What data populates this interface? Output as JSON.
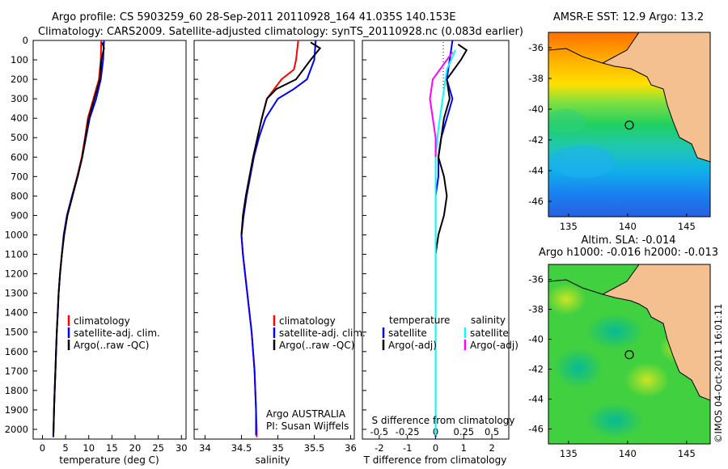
{
  "header": {
    "title_line1": "Argo profile: CS 5903259_60 28-Sep-2011 20110928_164 41.035S 140.153E",
    "title_line2": "Climatology: CARS2009. Satellite-adjusted climatology: synTS_20110928.nc (0.083d earlier)"
  },
  "watermark": "©IMOS 04-Oct-2011 16:01:11",
  "colors": {
    "climatology": "#ff0000",
    "satellite": "#0000ff",
    "argo": "#000000",
    "argo_salinity_diff": "#ff00ff",
    "satellite_salinity_diff": "#00ffff",
    "land": "#f5c090"
  },
  "chart_data": [
    {
      "type": "line",
      "name": "temperature-panel",
      "xlabel": "temperature (deg C)",
      "ylabel": "",
      "xlim": [
        -2,
        31
      ],
      "ylim": [
        2050,
        0
      ],
      "xticks": [
        0,
        5,
        10,
        15,
        20,
        25,
        30
      ],
      "yticks": [
        0,
        100,
        200,
        300,
        400,
        500,
        600,
        700,
        800,
        900,
        1000,
        1100,
        1200,
        1300,
        1400,
        1500,
        1600,
        1700,
        1800,
        1900,
        2000
      ],
      "legend": [
        "climatology",
        "satellite-adj. clim.",
        "Argo(..raw -QC)"
      ],
      "legend_position": "lower-center",
      "series": [
        {
          "name": "climatology",
          "color": "#ff0000",
          "points": [
            [
              12.7,
              0
            ],
            [
              12.6,
              100
            ],
            [
              12.2,
              200
            ],
            [
              11.0,
              300
            ],
            [
              9.8,
              400
            ],
            [
              9.2,
              500
            ],
            [
              8.5,
              600
            ],
            [
              7.5,
              700
            ],
            [
              6.4,
              800
            ],
            [
              5.3,
              900
            ],
            [
              4.6,
              1000
            ],
            [
              4.2,
              1100
            ],
            [
              3.8,
              1200
            ],
            [
              3.5,
              1300
            ],
            [
              3.3,
              1400
            ],
            [
              3.1,
              1500
            ],
            [
              2.95,
              1600
            ],
            [
              2.8,
              1700
            ],
            [
              2.65,
              1800
            ],
            [
              2.5,
              1900
            ],
            [
              2.4,
              2000
            ],
            [
              2.35,
              2040
            ]
          ]
        },
        {
          "name": "satellite-adj. clim.",
          "color": "#0000ff",
          "points": [
            [
              13.3,
              0
            ],
            [
              13.1,
              100
            ],
            [
              12.6,
              200
            ],
            [
              11.6,
              300
            ],
            [
              10.2,
              400
            ],
            [
              9.4,
              500
            ],
            [
              8.6,
              600
            ],
            [
              7.6,
              700
            ],
            [
              6.4,
              800
            ],
            [
              5.3,
              900
            ],
            [
              4.6,
              1000
            ],
            [
              4.2,
              1100
            ],
            [
              3.8,
              1200
            ],
            [
              3.5,
              1300
            ],
            [
              3.3,
              1400
            ],
            [
              3.1,
              1500
            ],
            [
              2.95,
              1600
            ],
            [
              2.8,
              1700
            ],
            [
              2.65,
              1800
            ],
            [
              2.5,
              1900
            ],
            [
              2.4,
              2000
            ],
            [
              2.35,
              2040
            ]
          ]
        },
        {
          "name": "Argo(..raw -QC)",
          "color": "#000000",
          "points": [
            [
              12.9,
              10
            ],
            [
              13.3,
              40
            ],
            [
              12.7,
              100
            ],
            [
              12.4,
              200
            ],
            [
              11.2,
              300
            ],
            [
              10.0,
              400
            ],
            [
              9.3,
              500
            ],
            [
              8.6,
              600
            ],
            [
              7.6,
              700
            ],
            [
              6.5,
              800
            ],
            [
              5.4,
              900
            ],
            [
              4.7,
              1000
            ],
            [
              4.2,
              1100
            ],
            [
              3.8,
              1200
            ],
            [
              3.5,
              1300
            ],
            [
              3.3,
              1400
            ],
            [
              3.1,
              1500
            ],
            [
              2.95,
              1600
            ],
            [
              2.8,
              1700
            ],
            [
              2.65,
              1800
            ],
            [
              2.5,
              1900
            ],
            [
              2.4,
              2000
            ],
            [
              2.35,
              2030
            ]
          ]
        }
      ]
    },
    {
      "type": "line",
      "name": "salinity-panel",
      "xlabel": "salinity",
      "ylabel": "",
      "xlim": [
        33.85,
        36.05
      ],
      "ylim": [
        2050,
        0
      ],
      "xticks": [
        34,
        34.5,
        35,
        35.5,
        36
      ],
      "legend": [
        "climatology",
        "satellite-adj. clim.",
        "Argo(..raw -QC)"
      ],
      "legend_position": "lower-right",
      "annotations": [
        "Argo AUSTRALIA",
        "PI: Susan Wijffels"
      ],
      "series": [
        {
          "name": "climatology",
          "color": "#ff0000",
          "points": [
            [
              35.28,
              0
            ],
            [
              35.25,
              100
            ],
            [
              35.22,
              150
            ],
            [
              35.05,
              200
            ],
            [
              34.95,
              250
            ],
            [
              34.85,
              300
            ],
            [
              34.78,
              400
            ],
            [
              34.72,
              500
            ],
            [
              34.67,
              600
            ],
            [
              34.62,
              700
            ],
            [
              34.57,
              800
            ],
            [
              34.53,
              900
            ],
            [
              34.5,
              1000
            ],
            [
              34.52,
              1100
            ],
            [
              34.55,
              1200
            ],
            [
              34.58,
              1300
            ],
            [
              34.61,
              1400
            ],
            [
              34.64,
              1500
            ],
            [
              34.66,
              1600
            ],
            [
              34.68,
              1700
            ],
            [
              34.69,
              1800
            ],
            [
              34.7,
              1900
            ],
            [
              34.71,
              2000
            ],
            [
              34.71,
              2040
            ]
          ]
        },
        {
          "name": "satellite-adj. clim.",
          "color": "#0000ff",
          "points": [
            [
              35.52,
              0
            ],
            [
              35.5,
              100
            ],
            [
              35.4,
              200
            ],
            [
              35.22,
              250
            ],
            [
              35.0,
              300
            ],
            [
              34.83,
              400
            ],
            [
              34.74,
              500
            ],
            [
              34.67,
              600
            ],
            [
              34.62,
              700
            ],
            [
              34.57,
              800
            ],
            [
              34.53,
              900
            ],
            [
              34.5,
              1000
            ],
            [
              34.52,
              1100
            ],
            [
              34.55,
              1200
            ],
            [
              34.58,
              1300
            ],
            [
              34.61,
              1400
            ],
            [
              34.64,
              1500
            ],
            [
              34.66,
              1600
            ],
            [
              34.68,
              1700
            ],
            [
              34.69,
              1800
            ],
            [
              34.7,
              1900
            ],
            [
              34.7,
              2000
            ],
            [
              34.7,
              2030
            ]
          ]
        },
        {
          "name": "Argo(..raw -QC)",
          "color": "#000000",
          "points": [
            [
              35.45,
              10
            ],
            [
              35.58,
              40
            ],
            [
              35.45,
              100
            ],
            [
              35.35,
              150
            ],
            [
              35.25,
              200
            ],
            [
              34.98,
              250
            ],
            [
              34.85,
              300
            ],
            [
              34.78,
              400
            ],
            [
              34.72,
              500
            ],
            [
              34.66,
              600
            ],
            [
              34.61,
              700
            ],
            [
              34.56,
              800
            ],
            [
              34.52,
              900
            ],
            [
              34.5,
              1000
            ]
          ]
        }
      ]
    },
    {
      "type": "line",
      "name": "difference-panel",
      "xlabel": "T difference from climatology",
      "xlabel_secondary": "S difference from climatology",
      "xlim": [
        -2.6,
        2.6
      ],
      "ylim": [
        2050,
        0
      ],
      "xticks_T": [
        -2,
        -1,
        0,
        1,
        2
      ],
      "xticks_S": [
        -0.5,
        -0.25,
        0,
        0.25,
        0.5
      ],
      "legend_temperature_header": "temperature",
      "legend_salinity_header": "salinity",
      "legend": [
        "satellite",
        "Argo(-adj)",
        "satellite",
        "Argo(-adj)"
      ],
      "legend_position": "lower-center",
      "series": [
        {
          "name": "satellite",
          "color": "#0000ff",
          "points": [
            [
              0.6,
              0
            ],
            [
              0.5,
              100
            ],
            [
              0.4,
              200
            ],
            [
              0.6,
              300
            ],
            [
              0.4,
              400
            ],
            [
              0.2,
              500
            ],
            [
              0.1,
              600
            ],
            [
              0.1,
              700
            ],
            [
              0.0,
              800
            ],
            [
              0.0,
              900
            ],
            [
              0.0,
              1000
            ],
            [
              0.0,
              1200
            ],
            [
              0.0,
              1600
            ],
            [
              0.0,
              2040
            ]
          ]
        },
        {
          "name": "Argo(-adj)",
          "color": "#000000",
          "points": [
            [
              0.8,
              20
            ],
            [
              1.1,
              50
            ],
            [
              0.9,
              100
            ],
            [
              0.4,
              200
            ],
            [
              0.5,
              300
            ],
            [
              0.3,
              400
            ],
            [
              0.2,
              500
            ],
            [
              0.1,
              600
            ],
            [
              0.3,
              700
            ],
            [
              0.4,
              800
            ],
            [
              0.3,
              900
            ],
            [
              0.1,
              1000
            ],
            [
              0.0,
              1100
            ],
            [
              0.0,
              1500
            ],
            [
              0.0,
              2030
            ]
          ]
        },
        {
          "name": "satellite",
          "color": "#00ffff",
          "points": [
            [
              0.7,
              50
            ],
            [
              0.4,
              150
            ],
            [
              0.3,
              250
            ],
            [
              0.2,
              350
            ],
            [
              0.1,
              450
            ],
            [
              0.0,
              600
            ],
            [
              0.0,
              900
            ],
            [
              0.0,
              2030
            ]
          ]
        },
        {
          "name": "Argo(-adj)",
          "color": "#ff00ff",
          "points": [
            [
              0.6,
              60
            ],
            [
              -0.1,
              200
            ],
            [
              -0.2,
              300
            ],
            [
              -0.1,
              400
            ],
            [
              0.0,
              500
            ],
            [
              0.0,
              600
            ]
          ]
        }
      ]
    },
    {
      "type": "heatmap",
      "name": "sst-map",
      "title": "AMSR-E SST: 12.9 Argo: 13.2",
      "xlim": [
        133.3,
        147.0
      ],
      "ylim": [
        -47.0,
        -35.0
      ],
      "xticks": [
        135,
        140,
        145
      ],
      "yticks": [
        -36,
        -38,
        -40,
        -42,
        -44,
        -46
      ],
      "marker": [
        140.153,
        -41.035
      ]
    },
    {
      "type": "heatmap",
      "name": "sla-map",
      "title_line1": "Altim. SLA: -0.014",
      "title_line2": "Argo h1000: -0.016 h2000: -0.013",
      "xlim": [
        133.3,
        147.0
      ],
      "ylim": [
        -47.0,
        -35.0
      ],
      "xticks": [
        135,
        140,
        145
      ],
      "yticks": [
        -36,
        -38,
        -40,
        -42,
        -44,
        -46
      ],
      "marker": [
        140.153,
        -41.035
      ]
    }
  ]
}
